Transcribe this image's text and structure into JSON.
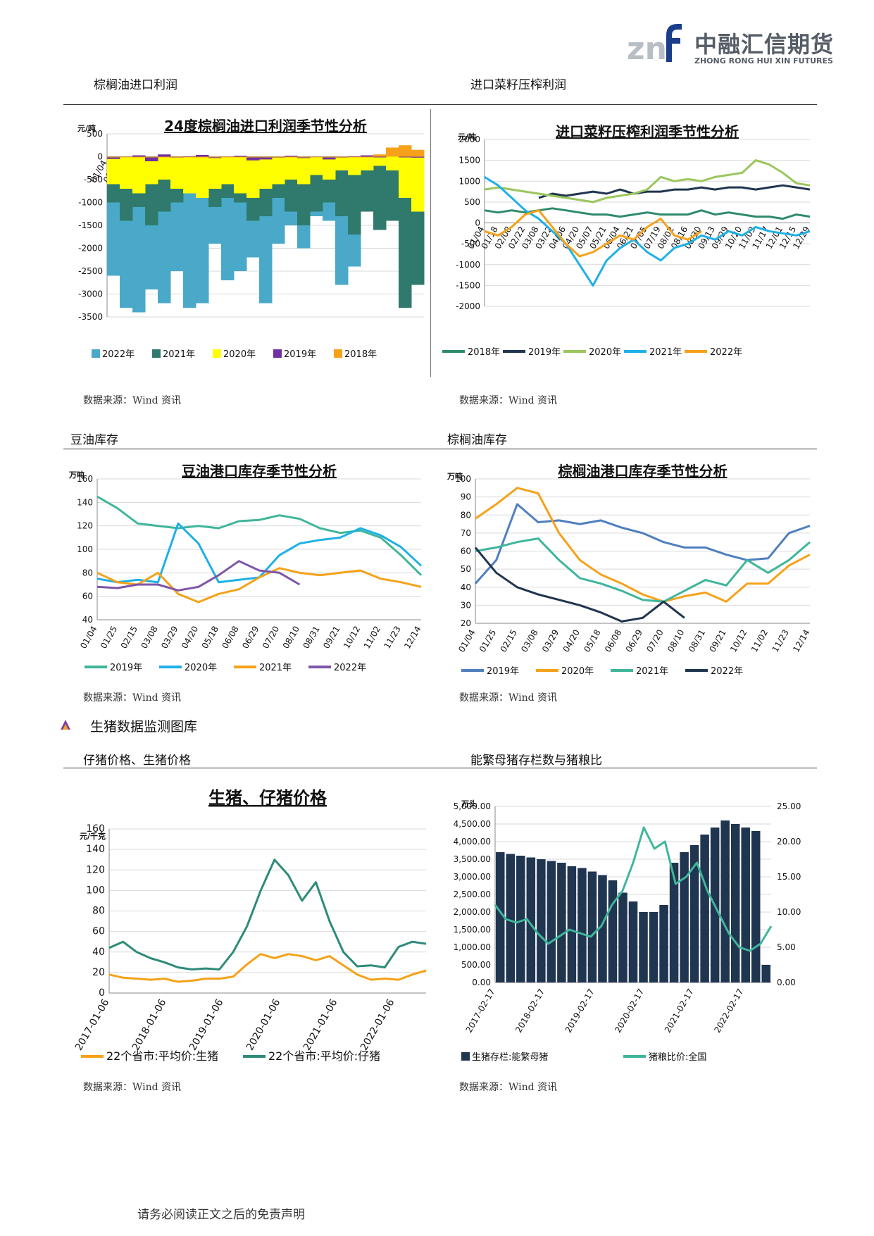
{
  "header": {
    "logo_cn": "中融汇信期货",
    "logo_en": "ZHONG RONG HUI XIN FUTURES",
    "logo_mark": "znf"
  },
  "sections": {
    "palm_profit": "棕榈油进口利润",
    "rapeseed_profit": "进口菜籽压榨利润",
    "soyoil_stock": "豆油库存",
    "palm_stock": "棕榈油库存",
    "hog_heading": "生猪数据监测图库",
    "pig_price": "仔猪价格、生猪价格",
    "sow_ratio": "能繁母猪存栏数与猪粮比"
  },
  "source_label": "数据来源：Wind 资讯",
  "footer": "请务必阅读正文之后的免责声明",
  "colors": {
    "rule": "#333333",
    "teal": "#2e8b7a",
    "navy": "#1f3550",
    "orange": "#f5a21a",
    "sky": "#1fb0e6",
    "purple": "#7d56a8",
    "green_light": "#9bc65d",
    "steel": "#4f7fbf",
    "dark_teal": "#2f6f62",
    "mint": "#3fb69b"
  },
  "chart_data": [
    {
      "id": "palm-import-profit",
      "type": "area",
      "title": "24度棕榈油进口利润季节性分析",
      "ylabel": "元/吨",
      "ylim": [
        -3500,
        500
      ],
      "yticks": [
        500,
        0,
        -500,
        -1000,
        -1500,
        -2000,
        -2500,
        -3000,
        -3500
      ],
      "x_ticks": [
        "01/04",
        "01/18",
        "02/03",
        "02/21",
        "03/08",
        "03/26",
        "04/06",
        "04/20",
        "05/07",
        "05/24",
        "06/07",
        "06/21",
        "07/04",
        "07/18",
        "08/02",
        "08/16",
        "08/30",
        "09/13",
        "09/29",
        "10/20",
        "11/03",
        "11/17",
        "12/01",
        "12/15",
        "12/29"
      ],
      "series": [
        {
          "name": "2022年",
          "color": "#4aa9c9",
          "values": [
            -2600,
            -3300,
            -3400,
            -2900,
            -3200,
            -2500,
            -3300,
            -3200,
            -1900,
            -2700,
            -2500,
            -2200,
            -3200,
            -1900,
            -1500,
            -2000,
            -1300,
            -1400,
            -2800,
            -2400,
            -1000,
            -1300,
            -600,
            -900,
            -700
          ]
        },
        {
          "name": "2021年",
          "color": "#2f7a6c",
          "values": [
            -1000,
            -1400,
            -1100,
            -1500,
            -1200,
            -1000,
            -800,
            -900,
            -1100,
            -900,
            -1000,
            -1400,
            -1300,
            -900,
            -1200,
            -1500,
            -1200,
            -1000,
            -1300,
            -1700,
            -1200,
            -1600,
            -1400,
            -3300,
            -2800
          ]
        },
        {
          "name": "2020年",
          "color": "#ffff00",
          "values": [
            -600,
            -700,
            -800,
            -600,
            -500,
            -700,
            -800,
            -900,
            -700,
            -600,
            -800,
            -900,
            -700,
            -600,
            -500,
            -600,
            -400,
            -500,
            -300,
            -400,
            -300,
            -200,
            -300,
            -900,
            -1200
          ]
        },
        {
          "name": "2019年",
          "color": "#7030a0",
          "values": [
            -50,
            0,
            30,
            -100,
            50,
            -20,
            10,
            40,
            -30,
            0,
            20,
            -80,
            -60,
            -20,
            20,
            -30,
            0,
            -60,
            -20,
            10,
            30,
            -10,
            50,
            0,
            -20
          ]
        },
        {
          "name": "2018年",
          "color": "#f7a11a",
          "values": [
            0,
            0,
            0,
            0,
            0,
            0,
            0,
            0,
            0,
            0,
            0,
            0,
            0,
            0,
            0,
            0,
            0,
            0,
            0,
            0,
            0,
            50,
            200,
            250,
            150
          ]
        }
      ]
    },
    {
      "id": "rapeseed-crush-profit",
      "type": "line",
      "title": "进口菜籽压榨利润季节性分析",
      "ylabel": "元/吨",
      "ylim": [
        -2000,
        2000
      ],
      "yticks": [
        2000,
        1500,
        1000,
        500,
        0,
        -500,
        -1000,
        -1500,
        -2000
      ],
      "x_ticks": [
        "01/04",
        "01/18",
        "02/08",
        "02/22",
        "03/08",
        "03/22",
        "04/06",
        "04/20",
        "05/07",
        "05/21",
        "06/04",
        "06/21",
        "07/05",
        "07/19",
        "08/02",
        "08/16",
        "08/30",
        "09/13",
        "09/29",
        "10/20",
        "11/03",
        "11/17",
        "12/01",
        "12/15",
        "12/29"
      ],
      "series": [
        {
          "name": "2018年",
          "color": "#2e8b6a",
          "values": [
            300,
            250,
            300,
            250,
            300,
            350,
            300,
            250,
            200,
            200,
            150,
            200,
            250,
            200,
            200,
            200,
            300,
            200,
            250,
            200,
            150,
            150,
            100,
            200,
            150
          ]
        },
        {
          "name": "2019年",
          "color": "#1f3550",
          "values": [
            null,
            null,
            null,
            null,
            600,
            700,
            650,
            700,
            750,
            700,
            800,
            700,
            750,
            750,
            800,
            800,
            850,
            800,
            850,
            850,
            800,
            850,
            900,
            850,
            800
          ]
        },
        {
          "name": "2020年",
          "color": "#9bc65d",
          "values": [
            800,
            850,
            800,
            750,
            700,
            650,
            600,
            550,
            500,
            600,
            650,
            700,
            800,
            1100,
            1000,
            1050,
            1000,
            1100,
            1150,
            1200,
            1500,
            1400,
            1200,
            950,
            900
          ]
        },
        {
          "name": "2021年",
          "color": "#1fb0e6",
          "values": [
            1100,
            900,
            600,
            300,
            100,
            -200,
            -500,
            -1000,
            -1500,
            -900,
            -600,
            -400,
            -700,
            -900,
            -600,
            -500,
            -300,
            -400,
            -200,
            -300,
            -100,
            -200,
            -250,
            -300,
            -200
          ]
        },
        {
          "name": "2022年",
          "color": "#f5a21a",
          "values": [
            -200,
            -300,
            -100,
            200,
            300,
            -100,
            -500,
            -800,
            -700,
            -500,
            -300,
            -400,
            -100,
            100,
            -300,
            -400,
            -200,
            null,
            null,
            null,
            null,
            null,
            null,
            null,
            null
          ]
        }
      ]
    },
    {
      "id": "soyoil-port-stock",
      "type": "line",
      "title": "豆油港口库存季节性分析",
      "ylabel": "万吨",
      "ylim": [
        40,
        160
      ],
      "yticks": [
        160,
        140,
        120,
        100,
        80,
        60,
        40
      ],
      "x_ticks": [
        "01/04",
        "01/25",
        "02/15",
        "03/08",
        "03/29",
        "04/20",
        "05/18",
        "06/08",
        "06/29",
        "07/20",
        "08/10",
        "08/31",
        "09/21",
        "10/12",
        "11/02",
        "11/23",
        "12/14"
      ],
      "series": [
        {
          "name": "2019年",
          "color": "#3fb69b",
          "values": [
            145,
            135,
            122,
            120,
            118,
            120,
            118,
            124,
            125,
            129,
            126,
            118,
            114,
            116,
            110,
            95,
            78
          ]
        },
        {
          "name": "2020年",
          "color": "#1fb0e6",
          "values": [
            75,
            72,
            74,
            72,
            122,
            105,
            72,
            74,
            76,
            95,
            105,
            108,
            110,
            118,
            112,
            102,
            86
          ]
        },
        {
          "name": "2021年",
          "color": "#f5a21a",
          "values": [
            80,
            72,
            70,
            80,
            62,
            55,
            62,
            66,
            76,
            84,
            80,
            78,
            80,
            82,
            75,
            72,
            68
          ]
        },
        {
          "name": "2022年",
          "color": "#7d56a8",
          "values": [
            68,
            67,
            70,
            70,
            65,
            68,
            78,
            90,
            82,
            80,
            70,
            null,
            null,
            null,
            null,
            null,
            null
          ]
        }
      ]
    },
    {
      "id": "palm-port-stock",
      "type": "line",
      "title": "棕榈油港口库存季节性分析",
      "ylabel": "万吨",
      "ylim": [
        20,
        100
      ],
      "yticks": [
        100,
        90,
        80,
        70,
        60,
        50,
        40,
        30,
        20
      ],
      "x_ticks": [
        "01/04",
        "01/25",
        "02/15",
        "03/08",
        "03/29",
        "04/20",
        "05/18",
        "06/08",
        "06/29",
        "07/20",
        "08/10",
        "08/31",
        "09/21",
        "10/12",
        "11/02",
        "11/23",
        "12/14"
      ],
      "series": [
        {
          "name": "2019年",
          "color": "#4f7fbf",
          "values": [
            42,
            55,
            86,
            76,
            77,
            75,
            77,
            73,
            70,
            65,
            62,
            62,
            58,
            55,
            56,
            70,
            74
          ]
        },
        {
          "name": "2020年",
          "color": "#f5a21a",
          "values": [
            78,
            86,
            95,
            92,
            70,
            55,
            47,
            42,
            36,
            32,
            35,
            37,
            32,
            42,
            42,
            52,
            58
          ]
        },
        {
          "name": "2021年",
          "color": "#3fb69b",
          "values": [
            60,
            62,
            65,
            67,
            55,
            45,
            42,
            38,
            33,
            32,
            38,
            44,
            41,
            55,
            48,
            55,
            65
          ]
        },
        {
          "name": "2022年",
          "color": "#1f3550",
          "values": [
            62,
            48,
            40,
            36,
            33,
            30,
            26,
            21,
            23,
            32,
            23,
            null,
            null,
            null,
            null,
            null,
            null
          ]
        }
      ]
    },
    {
      "id": "hog-piglet-price",
      "type": "line",
      "title": "生猪、仔猪价格",
      "ylabel": "元/千克",
      "ylim": [
        0,
        160
      ],
      "yticks": [
        160,
        140,
        120,
        100,
        80,
        60,
        40,
        20,
        0
      ],
      "x_ticks": [
        "2017-01-06",
        "2018-01-06",
        "2019-01-06",
        "2020-01-06",
        "2021-01-06",
        "2022-01-06"
      ],
      "series": [
        {
          "name": "22个省市:平均价:生猪",
          "color": "#f5a21a",
          "values": [
            18,
            15,
            14,
            13,
            14,
            11,
            12,
            14,
            14,
            16,
            28,
            38,
            34,
            38,
            36,
            32,
            36,
            27,
            18,
            13,
            14,
            13,
            18,
            22
          ]
        },
        {
          "name": "22个省市:平均价:仔猪",
          "color": "#2e8b7a",
          "values": [
            44,
            50,
            40,
            34,
            30,
            25,
            23,
            24,
            23,
            40,
            65,
            100,
            130,
            115,
            90,
            108,
            70,
            40,
            26,
            27,
            25,
            45,
            50,
            48
          ]
        }
      ]
    },
    {
      "id": "sow-stock-ratio",
      "type": "bar",
      "title": "",
      "ylabel": "万头",
      "ylim": [
        0,
        5000
      ],
      "yticks": [
        "5,000.00",
        "4,500.00",
        "4,000.00",
        "3,500.00",
        "3,000.00",
        "2,500.00",
        "2,000.00",
        "1,500.00",
        "1,000.00",
        "500.00",
        "0.00"
      ],
      "y2ticks": [
        "25.00",
        "20.00",
        "15.00",
        "10.00",
        "5.00",
        "0.00"
      ],
      "x_ticks": [
        "2017-02-17",
        "2018-02-17",
        "2019-02-17",
        "2020-02-17",
        "2021-02-17",
        "2022-02-17"
      ],
      "series": [
        {
          "name": "生猪存栏:能繁母猪",
          "color": "#1f3550",
          "values": [
            3700,
            3650,
            3600,
            3550,
            3500,
            3450,
            3400,
            3300,
            3250,
            3150,
            3050,
            2900,
            2550,
            2300,
            2000,
            2000,
            2200,
            3400,
            3700,
            3900,
            4200,
            4400,
            4600,
            4500,
            4400,
            4300,
            500
          ]
        },
        {
          "name": "猪粮比价:全国",
          "color": "#3fb69b",
          "values": [
            11,
            9,
            8.5,
            9,
            7,
            5.5,
            6.5,
            7.5,
            7,
            6.5,
            8,
            11,
            13,
            17,
            22,
            19,
            20,
            14,
            15,
            17,
            13,
            10,
            7,
            5,
            4.5,
            5.5,
            8
          ]
        }
      ]
    }
  ]
}
